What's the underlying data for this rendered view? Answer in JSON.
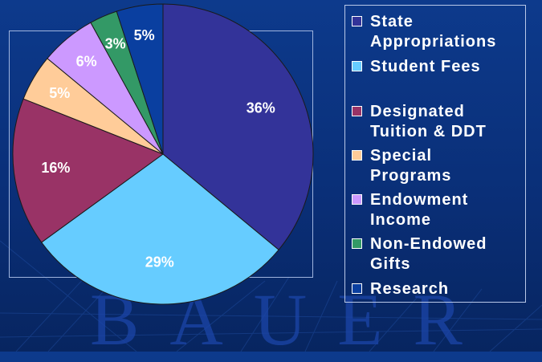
{
  "watermark": "BAUER",
  "chart_data": {
    "type": "pie",
    "slices": [
      {
        "name": "State Appropriations",
        "label": "State\nAppropriations",
        "value": 36,
        "value_label": "36%",
        "color": "#333399"
      },
      {
        "name": "Student Fees",
        "label": "Student Fees",
        "value": 29,
        "value_label": "29%",
        "color": "#66ccff"
      },
      {
        "name": "Designated Tuition & DDT",
        "label": "Designated\nTuition & DDT",
        "value": 16,
        "value_label": "16%",
        "color": "#993366"
      },
      {
        "name": "Special Programs",
        "label": "Special\nPrograms",
        "value": 5,
        "value_label": "5%",
        "color": "#ffcc99"
      },
      {
        "name": "Endowment Income",
        "label": "Endowment\nIncome",
        "value": 6,
        "value_label": "6%",
        "color": "#cc99ff"
      },
      {
        "name": "Non-Endowed Gifts",
        "label": "Non-Endowed\nGifts",
        "value": 3,
        "value_label": "3%",
        "color": "#339966"
      },
      {
        "name": "Research",
        "label": "Research",
        "value": 5,
        "value_label": "5%",
        "color": "#0a3fa0"
      }
    ],
    "legend_position": "right"
  }
}
